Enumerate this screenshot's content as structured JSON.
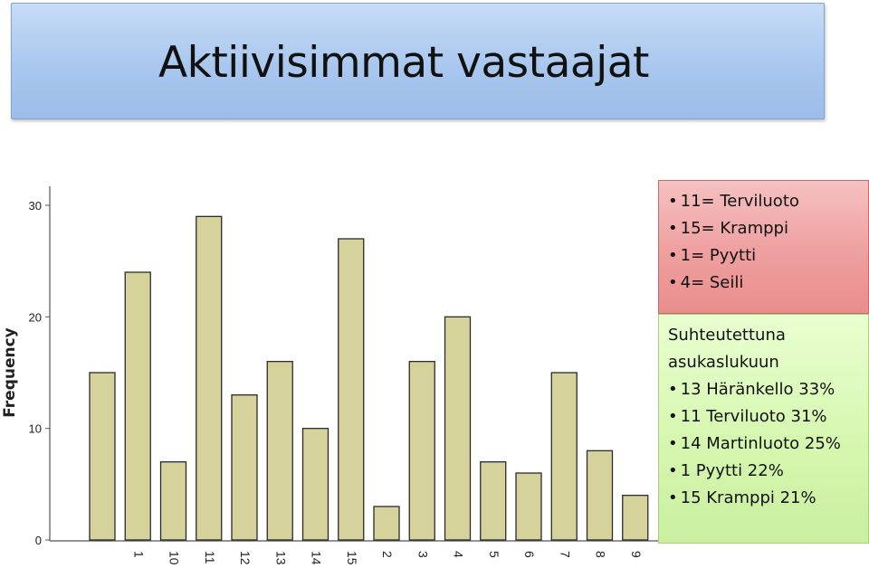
{
  "title": "Aktiivisimmat vastaajat",
  "legend_items": [
    "11= Terviluoto",
    "15= Kramppi",
    "1=  Pyytti",
    "4=  Seili"
  ],
  "stats": {
    "heading_line1": "Suhteutettuna",
    "heading_line2": "asukaslukuun",
    "items": [
      "13 Häränkello 33%",
      "11 Terviluoto 31%",
      "14 Martinluoto 25%",
      "1   Pyytti 22%",
      "15 Kramppi 21%"
    ]
  },
  "colors": {
    "bar_fill": "#d6d29b",
    "bar_stroke": "#2b2b2b",
    "title_bg": "#a9c7ee",
    "legend_bg": "#ef9f9f",
    "stats_bg": "#d6f7b0"
  },
  "chart_data": {
    "type": "bar",
    "ylabel": "Frequency",
    "xlabel": "",
    "ylim": [
      0,
      30
    ],
    "yticks": [
      0,
      10,
      20,
      30
    ],
    "categories": [
      "",
      "1",
      "10",
      "11",
      "12",
      "13",
      "14",
      "15",
      "2",
      "3",
      "4",
      "5",
      "6",
      "7",
      "8",
      "9"
    ],
    "values": [
      15,
      24,
      7,
      29,
      13,
      16,
      10,
      27,
      3,
      16,
      20,
      7,
      6,
      15,
      8,
      4
    ]
  }
}
